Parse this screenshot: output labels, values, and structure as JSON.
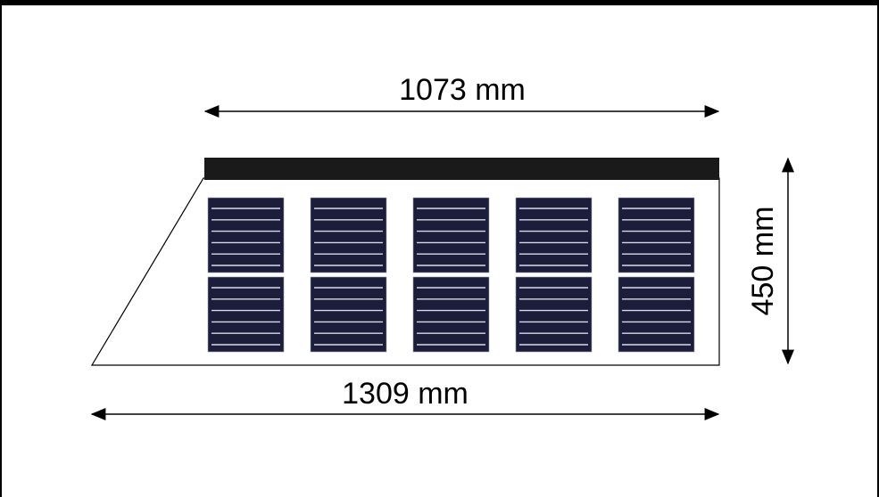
{
  "dimensions": {
    "top_width": "1073 mm",
    "bottom_width": "1309 mm",
    "height": "450 mm"
  },
  "panel": {
    "cell_rows": 2,
    "cell_columns": 5,
    "cell_busbars": 6
  },
  "colors": {
    "cell": "#1b1d3a",
    "busbar": "#d9dbe4",
    "rail": "#1a1a1a",
    "outline": "#000000"
  }
}
